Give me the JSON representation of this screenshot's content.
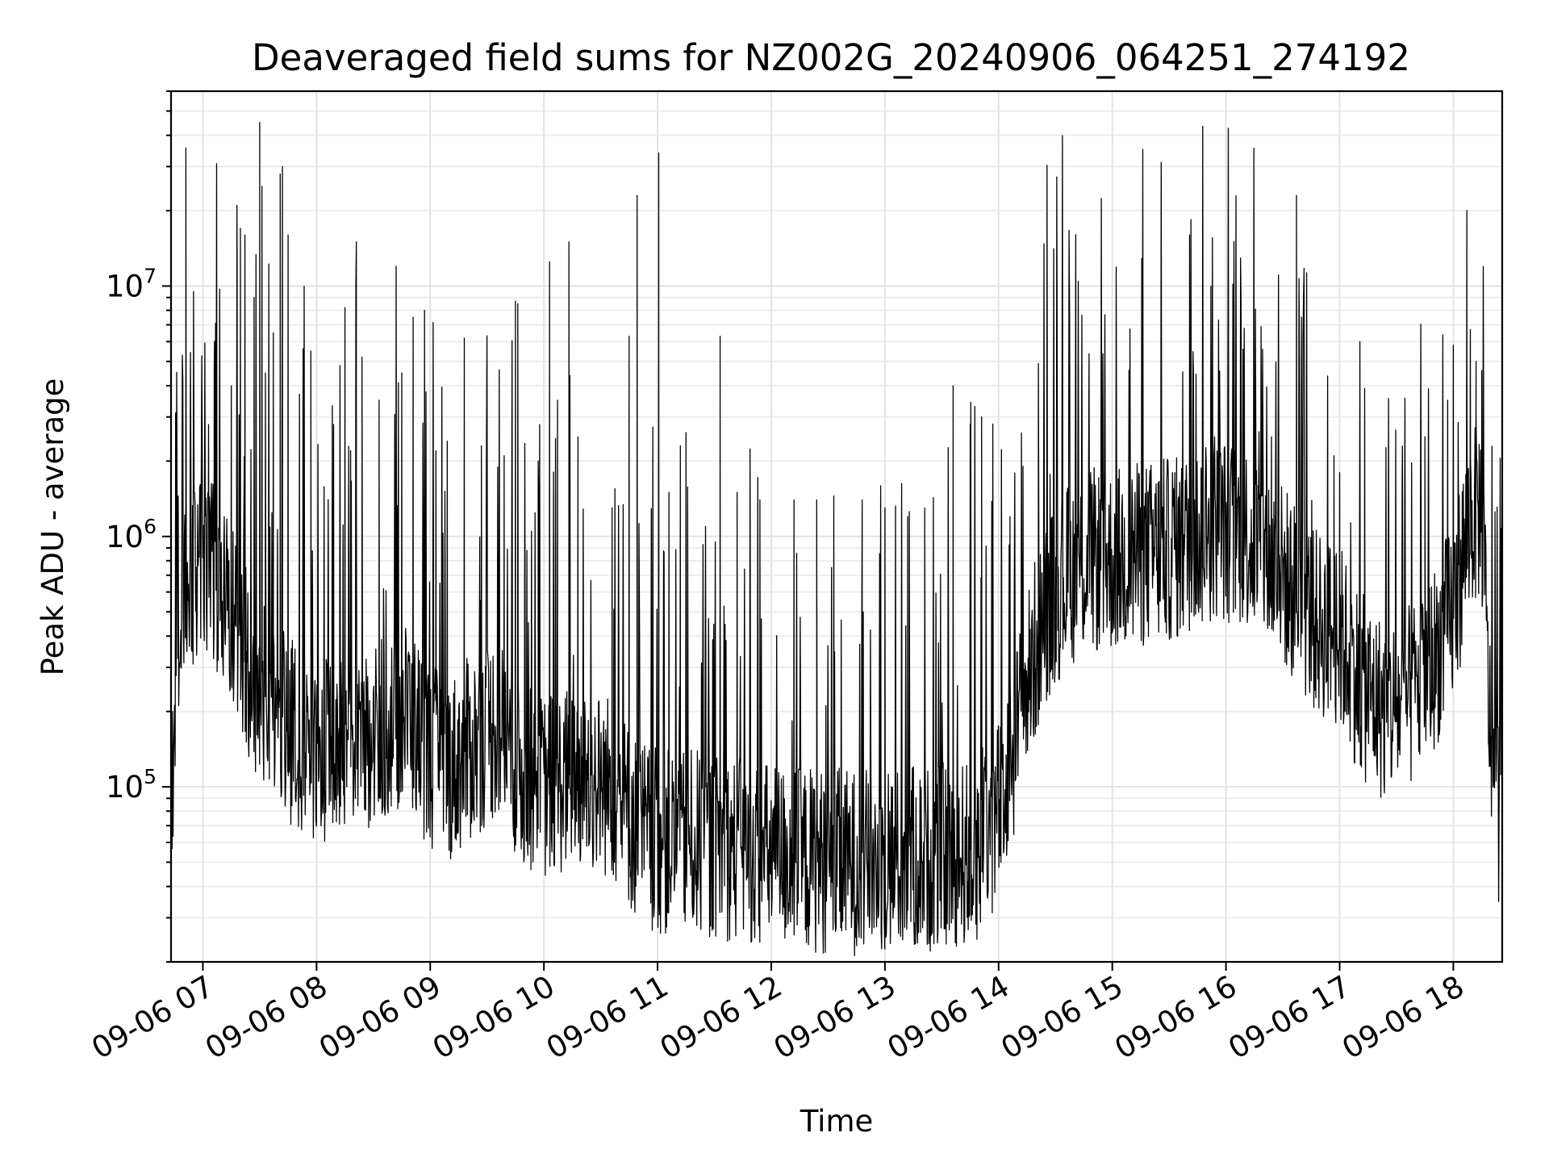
{
  "chart_data": {
    "type": "line",
    "title": "Deaveraged field sums for NZ002G_20240906_064251_274192",
    "xlabel": "Time",
    "ylabel": "Peak ADU - average",
    "yscale": "log",
    "ylim": [
      20000,
      60000000
    ],
    "xlim_hours": [
      6.72,
      18.43
    ],
    "grid": true,
    "line_color": "#000000",
    "x_ticks": [
      {
        "hour": 7,
        "label": "09-06 07"
      },
      {
        "hour": 8,
        "label": "09-06 08"
      },
      {
        "hour": 9,
        "label": "09-06 09"
      },
      {
        "hour": 10,
        "label": "09-06 10"
      },
      {
        "hour": 11,
        "label": "09-06 11"
      },
      {
        "hour": 12,
        "label": "09-06 12"
      },
      {
        "hour": 13,
        "label": "09-06 13"
      },
      {
        "hour": 14,
        "label": "09-06 14"
      },
      {
        "hour": 15,
        "label": "09-06 15"
      },
      {
        "hour": 16,
        "label": "09-06 16"
      },
      {
        "hour": 17,
        "label": "09-06 17"
      },
      {
        "hour": 18,
        "label": "09-06 18"
      }
    ],
    "y_ticks": [
      {
        "value": 100000,
        "base": "10",
        "exp": "5"
      },
      {
        "value": 1000000,
        "base": "10",
        "exp": "6"
      },
      {
        "value": 10000000,
        "base": "10",
        "exp": "7"
      }
    ],
    "baseline": [
      [
        6.72,
        80000
      ],
      [
        6.8,
        600000
      ],
      [
        7.0,
        800000
      ],
      [
        7.2,
        600000
      ],
      [
        7.4,
        300000
      ],
      [
        7.6,
        220000
      ],
      [
        7.8,
        160000
      ],
      [
        8.0,
        140000
      ],
      [
        8.2,
        150000
      ],
      [
        8.4,
        140000
      ],
      [
        8.6,
        170000
      ],
      [
        8.8,
        200000
      ],
      [
        9.0,
        130000
      ],
      [
        9.2,
        120000
      ],
      [
        9.4,
        150000
      ],
      [
        9.6,
        180000
      ],
      [
        9.8,
        110000
      ],
      [
        10.0,
        100000
      ],
      [
        10.3,
        110000
      ],
      [
        10.6,
        100000
      ],
      [
        10.8,
        70000
      ],
      [
        11.0,
        60000
      ],
      [
        11.4,
        60000
      ],
      [
        11.8,
        55000
      ],
      [
        12.2,
        52000
      ],
      [
        12.6,
        50000
      ],
      [
        13.0,
        50000
      ],
      [
        13.4,
        52000
      ],
      [
        13.8,
        55000
      ],
      [
        14.0,
        80000
      ],
      [
        14.2,
        200000
      ],
      [
        14.4,
        500000
      ],
      [
        14.6,
        700000
      ],
      [
        14.8,
        800000
      ],
      [
        15.0,
        800000
      ],
      [
        15.3,
        850000
      ],
      [
        15.6,
        900000
      ],
      [
        15.9,
        1100000
      ],
      [
        16.2,
        1000000
      ],
      [
        16.5,
        700000
      ],
      [
        16.8,
        450000
      ],
      [
        17.0,
        400000
      ],
      [
        17.2,
        250000
      ],
      [
        17.4,
        200000
      ],
      [
        17.6,
        220000
      ],
      [
        17.8,
        300000
      ],
      [
        18.0,
        500000
      ],
      [
        18.15,
        1200000
      ],
      [
        18.25,
        1300000
      ],
      [
        18.32,
        180000
      ],
      [
        18.43,
        60000
      ]
    ],
    "spikes": [
      [
        6.85,
        1400000
      ],
      [
        7.05,
        2800000
      ],
      [
        7.1,
        4600000
      ],
      [
        7.25,
        4000000
      ],
      [
        7.3,
        21000000
      ],
      [
        7.33,
        17000000
      ],
      [
        7.37,
        16000000
      ],
      [
        7.45,
        9000000
      ],
      [
        7.55,
        4500000
      ],
      [
        7.5,
        45000000
      ],
      [
        7.52,
        25000000
      ],
      [
        7.58,
        8700000
      ],
      [
        7.62,
        6500000
      ],
      [
        7.68,
        28000000
      ],
      [
        7.7,
        30000000
      ],
      [
        7.75,
        16000000
      ],
      [
        7.85,
        3700000
      ],
      [
        7.95,
        5500000
      ],
      [
        8.15,
        2800000
      ],
      [
        8.25,
        8200000
      ],
      [
        8.3,
        2200000
      ],
      [
        8.35,
        15000000
      ],
      [
        8.4,
        5200000
      ],
      [
        8.55,
        3500000
      ],
      [
        8.7,
        12000000
      ],
      [
        8.75,
        4500000
      ],
      [
        8.85,
        7500000
      ],
      [
        8.95,
        8000000
      ],
      [
        9.05,
        2200000
      ],
      [
        9.15,
        2400000
      ],
      [
        9.3,
        6200000
      ],
      [
        9.45,
        2300000
      ],
      [
        9.5,
        5000000
      ],
      [
        9.65,
        2100000
      ],
      [
        9.75,
        8700000
      ],
      [
        9.77,
        8500000
      ],
      [
        9.95,
        2000000
      ],
      [
        10.05,
        12500000
      ],
      [
        10.12,
        3500000
      ],
      [
        10.22,
        15000000
      ],
      [
        10.3,
        2500000
      ],
      [
        10.6,
        1300000
      ],
      [
        10.75,
        6300000
      ],
      [
        10.82,
        23000000
      ],
      [
        11.01,
        34000000
      ],
      [
        11.1,
        1500000
      ],
      [
        11.2,
        2300000
      ],
      [
        11.25,
        2600000
      ],
      [
        11.55,
        6300000
      ],
      [
        11.7,
        1500000
      ],
      [
        11.9,
        1400000
      ],
      [
        12.2,
        1400000
      ],
      [
        12.4,
        1400000
      ],
      [
        12.55,
        1450000
      ],
      [
        12.8,
        1400000
      ],
      [
        13.0,
        1300000
      ],
      [
        13.2,
        1200000
      ],
      [
        13.35,
        1300000
      ],
      [
        13.6,
        4000000
      ],
      [
        13.75,
        2800000
      ],
      [
        13.85,
        3000000
      ],
      [
        14.1,
        1200000
      ],
      [
        14.35,
        4900000
      ],
      [
        14.6,
        1500000
      ],
      [
        14.85,
        1600000
      ],
      [
        15.2,
        1500000
      ],
      [
        15.55,
        1800000
      ],
      [
        15.68,
        16000000
      ],
      [
        15.9,
        2500000
      ],
      [
        16.15,
        5600000
      ],
      [
        16.4,
        2500000
      ],
      [
        16.62,
        23000000
      ],
      [
        16.95,
        2100000
      ],
      [
        17.0,
        1800000
      ],
      [
        17.22,
        3900000
      ],
      [
        17.55,
        1700000
      ],
      [
        17.75,
        2500000
      ],
      [
        17.95,
        3500000
      ],
      [
        18.0,
        5800000
      ],
      [
        18.12,
        4700000
      ],
      [
        18.15,
        6700000
      ],
      [
        18.2,
        5000000
      ],
      [
        18.25,
        4600000
      ]
    ]
  }
}
